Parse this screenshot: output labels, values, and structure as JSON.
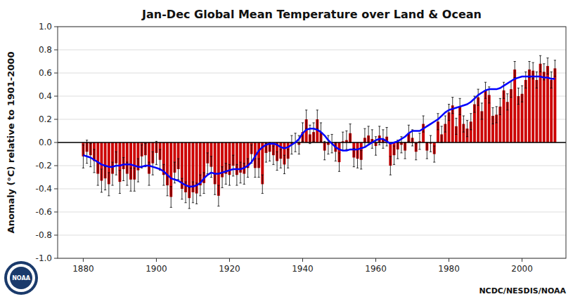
{
  "chart_data": {
    "type": "bar",
    "title": "Jan-Dec Global Mean Temperature over Land & Ocean",
    "ylabel": "Anomaly (°C) relative to 1901-2000",
    "annotations": [
      "NCDC/NESDIS/NOAA",
      "NOAA"
    ],
    "xlim": [
      1873,
      2012
    ],
    "ylim": [
      -1.0,
      1.0
    ],
    "xticks": [
      1880,
      1900,
      1920,
      1940,
      1960,
      1980,
      2000
    ],
    "yticks": [
      {
        "value": -1.0,
        "label": "-1.0"
      },
      -0.8,
      -0.6,
      -0.4,
      -0.2,
      {
        "value": 0.0,
        "label": "0.0"
      },
      0.2,
      0.4,
      0.6,
      0.8,
      {
        "value": 1.0,
        "label": "1.0"
      }
    ],
    "grid": "y",
    "x": [
      1880,
      1881,
      1882,
      1883,
      1884,
      1885,
      1886,
      1887,
      1888,
      1889,
      1890,
      1891,
      1892,
      1893,
      1894,
      1895,
      1896,
      1897,
      1898,
      1899,
      1900,
      1901,
      1902,
      1903,
      1904,
      1905,
      1906,
      1907,
      1908,
      1909,
      1910,
      1911,
      1912,
      1913,
      1914,
      1915,
      1916,
      1917,
      1918,
      1919,
      1920,
      1921,
      1922,
      1923,
      1924,
      1925,
      1926,
      1927,
      1928,
      1929,
      1930,
      1931,
      1932,
      1933,
      1934,
      1935,
      1936,
      1937,
      1938,
      1939,
      1940,
      1941,
      1942,
      1943,
      1944,
      1945,
      1946,
      1947,
      1948,
      1949,
      1950,
      1951,
      1952,
      1953,
      1954,
      1955,
      1956,
      1957,
      1958,
      1959,
      1960,
      1961,
      1962,
      1963,
      1964,
      1965,
      1966,
      1967,
      1968,
      1969,
      1970,
      1971,
      1972,
      1973,
      1974,
      1975,
      1976,
      1977,
      1978,
      1979,
      1980,
      1981,
      1982,
      1983,
      1984,
      1985,
      1986,
      1987,
      1988,
      1989,
      1990,
      1991,
      1992,
      1993,
      1994,
      1995,
      1996,
      1997,
      1998,
      1999,
      2000,
      2001,
      2002,
      2003,
      2004,
      2005,
      2006,
      2007,
      2008,
      2009
    ],
    "series": [
      {
        "type": "bar",
        "color": "#cc0000",
        "values": [
          -0.12,
          -0.08,
          -0.11,
          -0.16,
          -0.27,
          -0.33,
          -0.31,
          -0.36,
          -0.27,
          -0.18,
          -0.34,
          -0.23,
          -0.27,
          -0.32,
          -0.32,
          -0.24,
          -0.12,
          -0.11,
          -0.27,
          -0.18,
          -0.09,
          -0.15,
          -0.28,
          -0.37,
          -0.47,
          -0.26,
          -0.23,
          -0.4,
          -0.43,
          -0.48,
          -0.43,
          -0.44,
          -0.37,
          -0.35,
          -0.18,
          -0.21,
          -0.36,
          -0.46,
          -0.3,
          -0.27,
          -0.28,
          -0.2,
          -0.28,
          -0.26,
          -0.27,
          -0.22,
          -0.1,
          -0.22,
          -0.22,
          -0.36,
          -0.09,
          -0.08,
          -0.11,
          -0.16,
          -0.14,
          -0.19,
          -0.14,
          -0.02,
          0.0,
          -0.02,
          0.09,
          0.2,
          0.07,
          0.09,
          0.2,
          0.09,
          -0.07,
          -0.02,
          -0.01,
          -0.08,
          -0.17,
          0.01,
          0.02,
          0.08,
          -0.13,
          -0.14,
          -0.15,
          0.04,
          0.06,
          0.03,
          -0.03,
          0.06,
          0.03,
          0.05,
          -0.2,
          -0.11,
          -0.06,
          -0.02,
          -0.07,
          0.08,
          0.04,
          -0.08,
          0.01,
          0.16,
          -0.07,
          -0.01,
          -0.1,
          0.18,
          0.07,
          0.16,
          0.26,
          0.32,
          0.14,
          0.31,
          0.16,
          0.12,
          0.18,
          0.33,
          0.39,
          0.27,
          0.45,
          0.41,
          0.23,
          0.24,
          0.31,
          0.45,
          0.35,
          0.46,
          0.63,
          0.4,
          0.42,
          0.54,
          0.63,
          0.62,
          0.54,
          0.68,
          0.61,
          0.66,
          0.54,
          0.64
        ],
        "errors": [
          0.1,
          0.1,
          0.1,
          0.1,
          0.1,
          0.1,
          0.1,
          0.1,
          0.1,
          0.1,
          0.1,
          0.1,
          0.1,
          0.1,
          0.1,
          0.1,
          0.1,
          0.1,
          0.1,
          0.1,
          0.1,
          0.09,
          0.09,
          0.09,
          0.09,
          0.09,
          0.09,
          0.09,
          0.09,
          0.09,
          0.09,
          0.09,
          0.09,
          0.09,
          0.09,
          0.09,
          0.09,
          0.09,
          0.09,
          0.09,
          0.09,
          0.09,
          0.09,
          0.09,
          0.09,
          0.08,
          0.08,
          0.08,
          0.08,
          0.08,
          0.08,
          0.08,
          0.08,
          0.08,
          0.08,
          0.08,
          0.08,
          0.08,
          0.08,
          0.08,
          0.08,
          0.08,
          0.08,
          0.08,
          0.08,
          0.08,
          0.08,
          0.08,
          0.08,
          0.08,
          0.08,
          0.08,
          0.08,
          0.08,
          0.08,
          0.08,
          0.08,
          0.08,
          0.08,
          0.08,
          0.08,
          0.08,
          0.08,
          0.08,
          0.08,
          0.08,
          0.08,
          0.07,
          0.07,
          0.07,
          0.07,
          0.07,
          0.07,
          0.07,
          0.07,
          0.07,
          0.07,
          0.07,
          0.07,
          0.07,
          0.07,
          0.07,
          0.07,
          0.07,
          0.07,
          0.07,
          0.07,
          0.07,
          0.07,
          0.07,
          0.07,
          0.07,
          0.07,
          0.07,
          0.07,
          0.07,
          0.07,
          0.07,
          0.07,
          0.07,
          0.07,
          0.07,
          0.07,
          0.07,
          0.07,
          0.07,
          0.07,
          0.07,
          0.07,
          0.07
        ]
      },
      {
        "type": "line",
        "color": "#0000ff",
        "values": [
          -0.11,
          -0.12,
          -0.13,
          -0.15,
          -0.17,
          -0.19,
          -0.2,
          -0.21,
          -0.21,
          -0.2,
          -0.2,
          -0.19,
          -0.19,
          -0.19,
          -0.2,
          -0.21,
          -0.21,
          -0.2,
          -0.2,
          -0.21,
          -0.22,
          -0.23,
          -0.25,
          -0.28,
          -0.31,
          -0.32,
          -0.33,
          -0.35,
          -0.37,
          -0.38,
          -0.38,
          -0.37,
          -0.35,
          -0.31,
          -0.28,
          -0.26,
          -0.27,
          -0.27,
          -0.26,
          -0.25,
          -0.24,
          -0.23,
          -0.23,
          -0.23,
          -0.22,
          -0.2,
          -0.17,
          -0.12,
          -0.07,
          -0.04,
          -0.02,
          -0.01,
          -0.01,
          -0.02,
          -0.04,
          -0.05,
          -0.04,
          -0.02,
          0.0,
          0.03,
          0.08,
          0.11,
          0.12,
          0.12,
          0.11,
          0.09,
          0.06,
          0.02,
          -0.01,
          -0.04,
          -0.06,
          -0.07,
          -0.07,
          -0.06,
          -0.06,
          -0.06,
          -0.05,
          -0.04,
          -0.02,
          0.0,
          0.02,
          0.03,
          0.03,
          0.01,
          -0.01,
          0.0,
          0.01,
          0.03,
          0.05,
          0.08,
          0.1,
          0.1,
          0.1,
          0.12,
          0.14,
          0.16,
          0.18,
          0.2,
          0.23,
          0.26,
          0.28,
          0.29,
          0.3,
          0.31,
          0.32,
          0.33,
          0.35,
          0.38,
          0.41,
          0.43,
          0.45,
          0.46,
          0.46,
          0.46,
          0.47,
          0.49,
          0.51,
          0.53,
          0.55,
          0.56,
          0.57,
          0.57,
          0.57,
          0.57,
          0.57,
          0.57,
          0.56,
          0.56,
          0.55,
          0.55
        ]
      }
    ]
  }
}
